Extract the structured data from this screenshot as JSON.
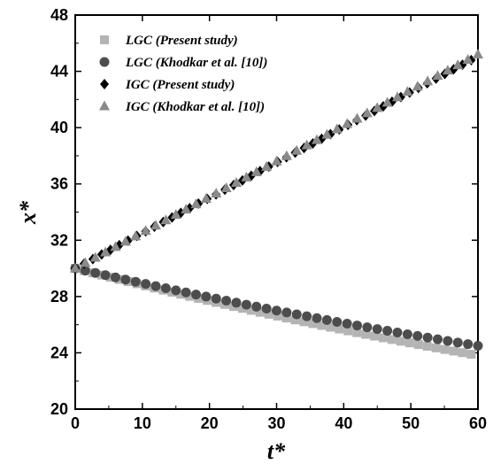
{
  "chart_data": {
    "type": "scatter",
    "xlabel": "t*",
    "ylabel": "x*",
    "xlim": [
      0,
      60
    ],
    "ylim": [
      20,
      48
    ],
    "xticks": [
      "0",
      "10",
      "20",
      "30",
      "40",
      "50",
      "60"
    ],
    "yticks": [
      "20",
      "24",
      "28",
      "32",
      "36",
      "40",
      "44",
      "48"
    ],
    "grid": false,
    "legend_position": "top-left",
    "series": [
      {
        "name": "LGC (Present study)",
        "marker": "square",
        "color": "#b4b4b4",
        "t_start": 0,
        "t_end": 59,
        "t_step": 1.3,
        "x": [
          0,
          59
        ],
        "y_formula": "quadratic",
        "y_start": 30.0,
        "y_end": 23.9
      },
      {
        "name": "LGC (Khodkar et al. [10])",
        "marker": "circle",
        "color": "#4d4d4d",
        "t_start": 0,
        "t_end": 60,
        "t_step": 1.5,
        "y_start": 30.0,
        "y_end": 24.5
      },
      {
        "name": "IGC (Present study)",
        "marker": "diamond",
        "color": "#000000",
        "t_start": 0,
        "t_end": 59,
        "t_step": 1.3,
        "y_start": 30.0,
        "y_end": 44.8
      },
      {
        "name": "IGC (Khodkar et al. [10])",
        "marker": "triangle",
        "color": "#8a8a8a",
        "t_start": 0,
        "t_end": 60,
        "t_step": 1.5,
        "y_start": 30.0,
        "y_end": 45.2
      }
    ]
  }
}
